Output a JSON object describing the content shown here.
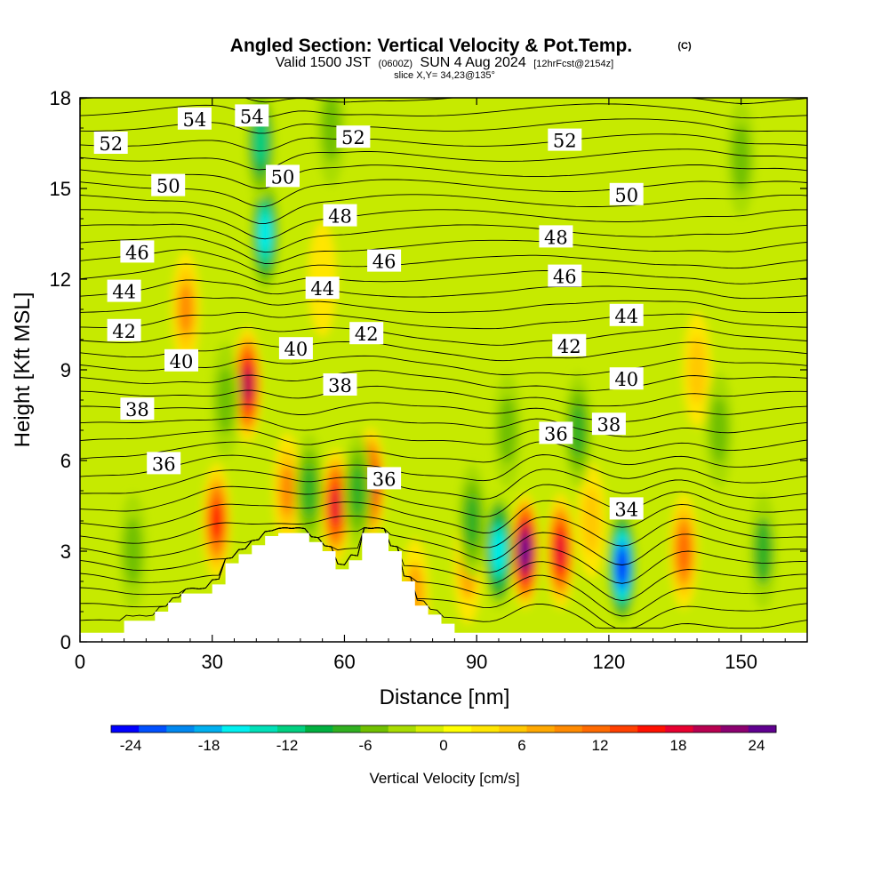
{
  "title": {
    "main": "Angled Section: Vertical Velocity & Pot.Temp.",
    "copyright": "(C)",
    "line2_a": "Valid 1500 JST",
    "line2_b": "(0600Z)",
    "line2_c": "SUN 4 Aug 2024",
    "line2_d": "[12hrFcst@2154z]",
    "line3": "slice X,Y= 34,23@135°"
  },
  "chart_data": {
    "type": "heatmap",
    "xlabel": "Distance [nm]",
    "ylabel": "Height [Kft MSL]",
    "xlim": [
      0,
      165
    ],
    "ylim": [
      0,
      18
    ],
    "xticks": [
      0,
      30,
      60,
      90,
      120,
      150
    ],
    "yticks": [
      0,
      3,
      6,
      9,
      12,
      15,
      18
    ],
    "colorbar": {
      "title": "Vertical Velocity [cm/s]",
      "ticks": [
        "-24",
        "-18",
        "-12",
        "-6",
        "0",
        "6",
        "12",
        "18",
        "24"
      ],
      "range": [
        -25.5,
        25.5
      ],
      "colors": [
        "#0000ff",
        "#0050ff",
        "#0088f0",
        "#00b0f0",
        "#00f0f0",
        "#00e0b8",
        "#00d080",
        "#00b040",
        "#30b020",
        "#70c000",
        "#a8dc00",
        "#d8f000",
        "#ffff00",
        "#ffe600",
        "#ffc800",
        "#ffa800",
        "#ff8a00",
        "#ff6a00",
        "#ff4000",
        "#ff1000",
        "#e80030",
        "#b80050",
        "#8c0070",
        "#600090"
      ]
    },
    "terrain_top_kft": [
      [
        0,
        0.3
      ],
      [
        10,
        0.3
      ],
      [
        10,
        0.7
      ],
      [
        17,
        0.7
      ],
      [
        17,
        1.0
      ],
      [
        20,
        1.0
      ],
      [
        20,
        1.3
      ],
      [
        23,
        1.3
      ],
      [
        23,
        1.6
      ],
      [
        30,
        1.6
      ],
      [
        30,
        1.9
      ],
      [
        33,
        1.9
      ],
      [
        33,
        2.6
      ],
      [
        36,
        2.6
      ],
      [
        36,
        2.9
      ],
      [
        39,
        2.9
      ],
      [
        39,
        3.2
      ],
      [
        42,
        3.2
      ],
      [
        42,
        3.5
      ],
      [
        45,
        3.5
      ],
      [
        45,
        3.6
      ],
      [
        52,
        3.6
      ],
      [
        52,
        3.3
      ],
      [
        55,
        3.3
      ],
      [
        55,
        3.0
      ],
      [
        58,
        3.0
      ],
      [
        58,
        2.4
      ],
      [
        61,
        2.4
      ],
      [
        61,
        2.7
      ],
      [
        64,
        2.7
      ],
      [
        64,
        3.6
      ],
      [
        70,
        3.6
      ],
      [
        70,
        3.0
      ],
      [
        73,
        3.0
      ],
      [
        73,
        2.0
      ],
      [
        76,
        2.0
      ],
      [
        76,
        1.2
      ],
      [
        79,
        1.2
      ],
      [
        79,
        0.9
      ],
      [
        82,
        0.9
      ],
      [
        82,
        0.6
      ],
      [
        85,
        0.6
      ],
      [
        85,
        0.3
      ],
      [
        165,
        0.3
      ]
    ],
    "updrafts": [
      {
        "x": 38,
        "z": 8.5,
        "value": 20
      },
      {
        "x": 31,
        "z": 4,
        "value": 15
      },
      {
        "x": 58,
        "z": 4.5,
        "value": 17
      },
      {
        "x": 66,
        "z": 5.2,
        "value": 19
      },
      {
        "x": 47,
        "z": 5,
        "value": 9
      },
      {
        "x": 24,
        "z": 11,
        "value": 9
      },
      {
        "x": 101,
        "z": 3,
        "value": 26
      },
      {
        "x": 109,
        "z": 3,
        "value": 18
      },
      {
        "x": 137,
        "z": 3,
        "value": 12
      },
      {
        "x": 116,
        "z": 4,
        "value": 6
      },
      {
        "x": 140,
        "z": 9,
        "value": 6
      },
      {
        "x": 55,
        "z": 12,
        "value": 4
      },
      {
        "x": 76,
        "z": 1.5,
        "value": 7
      },
      {
        "x": 88,
        "z": 2.5,
        "value": 7
      }
    ],
    "downdrafts": [
      {
        "x": 42,
        "z": 13.5,
        "value": -17
      },
      {
        "x": 41,
        "z": 16.5,
        "value": -12
      },
      {
        "x": 95,
        "z": 3,
        "value": -16
      },
      {
        "x": 123,
        "z": 2.5,
        "value": -25
      },
      {
        "x": 52,
        "z": 5,
        "value": -8
      },
      {
        "x": 63,
        "z": 5,
        "value": -8
      },
      {
        "x": 33,
        "z": 8,
        "value": -6
      },
      {
        "x": 113,
        "z": 7,
        "value": -8
      },
      {
        "x": 89,
        "z": 4,
        "value": -8
      },
      {
        "x": 12,
        "z": 3,
        "value": -6
      },
      {
        "x": 155,
        "z": 3,
        "value": -7
      },
      {
        "x": 57,
        "z": 17,
        "value": -6
      },
      {
        "x": 150,
        "z": 16,
        "value": -5
      },
      {
        "x": 97,
        "z": 7,
        "value": -6
      },
      {
        "x": 145,
        "z": 7,
        "value": -6
      }
    ],
    "contour_labels": [
      {
        "text": "52",
        "x": 7,
        "z": 16.5
      },
      {
        "text": "54",
        "x": 26,
        "z": 17.3
      },
      {
        "text": "54",
        "x": 39,
        "z": 17.4
      },
      {
        "text": "52",
        "x": 62,
        "z": 16.7
      },
      {
        "text": "52",
        "x": 110,
        "z": 16.6
      },
      {
        "text": "50",
        "x": 20,
        "z": 15.1
      },
      {
        "text": "50",
        "x": 46,
        "z": 15.4
      },
      {
        "text": "50",
        "x": 124,
        "z": 14.8
      },
      {
        "text": "48",
        "x": 59,
        "z": 14.1
      },
      {
        "text": "48",
        "x": 108,
        "z": 13.4
      },
      {
        "text": "46",
        "x": 13,
        "z": 12.9
      },
      {
        "text": "46",
        "x": 69,
        "z": 12.6
      },
      {
        "text": "46",
        "x": 110,
        "z": 12.1
      },
      {
        "text": "44",
        "x": 10,
        "z": 11.6
      },
      {
        "text": "44",
        "x": 55,
        "z": 11.7
      },
      {
        "text": "44",
        "x": 124,
        "z": 10.8
      },
      {
        "text": "42",
        "x": 10,
        "z": 10.3
      },
      {
        "text": "42",
        "x": 65,
        "z": 10.2
      },
      {
        "text": "42",
        "x": 111,
        "z": 9.8
      },
      {
        "text": "40",
        "x": 23,
        "z": 9.3
      },
      {
        "text": "40",
        "x": 49,
        "z": 9.7
      },
      {
        "text": "40",
        "x": 124,
        "z": 8.7
      },
      {
        "text": "38",
        "x": 13,
        "z": 7.7
      },
      {
        "text": "38",
        "x": 59,
        "z": 8.5
      },
      {
        "text": "38",
        "x": 120,
        "z": 7.2
      },
      {
        "text": "36",
        "x": 19,
        "z": 5.9
      },
      {
        "text": "36",
        "x": 108,
        "z": 6.9
      },
      {
        "text": "36",
        "x": 69,
        "z": 5.4
      },
      {
        "text": "34",
        "x": 124,
        "z": 4.4
      }
    ]
  }
}
